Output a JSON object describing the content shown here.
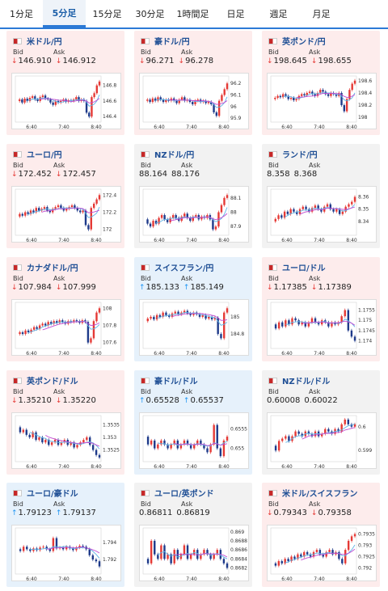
{
  "tabs": [
    "1分足",
    "5分足",
    "15分足",
    "30分足",
    "1時間足",
    "日足",
    "週足",
    "月足"
  ],
  "active_tab": 1,
  "labels": {
    "bid": "Bid",
    "ask": "Ask"
  },
  "colors": {
    "up": "#2196f3",
    "down": "#e53935",
    "title": "#1f4f95",
    "ma1": "#5fb3e6",
    "ma2": "#c04bd1"
  },
  "x_ticks": [
    "6:40",
    "7:40",
    "8:40"
  ],
  "cards": [
    {
      "title": "米ドル/円",
      "flag": "us-jp-flag",
      "dir": "down",
      "bid": "146.910",
      "ask": "146.912",
      "y_ticks": [
        "146.8",
        "146.6",
        "146.4"
      ],
      "ylim": [
        146.35,
        146.9
      ],
      "series": [
        146.6,
        146.62,
        146.58,
        146.63,
        146.6,
        146.64,
        146.66,
        146.62,
        146.6,
        146.65,
        146.67,
        146.63,
        146.62,
        146.58,
        146.55,
        146.6,
        146.58,
        146.6,
        146.62,
        146.59,
        146.61,
        146.6,
        146.62,
        146.65,
        146.6,
        146.62,
        146.6,
        146.45,
        146.4,
        146.65,
        146.7,
        146.8,
        146.85
      ]
    },
    {
      "title": "豪ドル/円",
      "flag": "au-jp-flag",
      "dir": "down",
      "bid": "96.271",
      "ask": "96.278",
      "y_ticks": [
        "96.2",
        "96.1",
        "96",
        "95.9"
      ],
      "ylim": [
        95.88,
        96.25
      ],
      "series": [
        96.05,
        96.06,
        96.04,
        96.07,
        96.05,
        96.08,
        96.06,
        96.04,
        96.06,
        96.05,
        96.07,
        96.05,
        96.03,
        96.06,
        96.08,
        96.05,
        96.06,
        96.04,
        96.02,
        96.05,
        96.06,
        96.04,
        96.05,
        96.03,
        96.04,
        96.02,
        95.95,
        95.92,
        96.05,
        96.1,
        96.15,
        96.2
      ]
    },
    {
      "title": "英ポンド/円",
      "flag": "gb-jp-flag",
      "dir": "down",
      "bid": "198.645",
      "ask": "198.655",
      "y_ticks": [
        "198.6",
        "198.4",
        "198.2",
        "198"
      ],
      "ylim": [
        197.95,
        198.65
      ],
      "series": [
        198.3,
        198.32,
        198.35,
        198.33,
        198.38,
        198.35,
        198.3,
        198.32,
        198.28,
        198.3,
        198.35,
        198.38,
        198.36,
        198.4,
        198.42,
        198.38,
        198.35,
        198.4,
        198.45,
        198.42,
        198.38,
        198.35,
        198.4,
        198.38,
        198.35,
        198.4,
        198.2,
        198.1,
        198.3,
        198.45,
        198.55,
        198.6
      ]
    },
    {
      "title": "ユーロ/円",
      "flag": "eu-jp-flag",
      "dir": "down",
      "bid": "172.452",
      "ask": "172.457",
      "y_ticks": [
        "172.4",
        "172.2",
        "172"
      ],
      "ylim": [
        171.95,
        172.45
      ],
      "series": [
        172.15,
        172.18,
        172.16,
        172.2,
        172.18,
        172.22,
        172.2,
        172.25,
        172.22,
        172.24,
        172.26,
        172.22,
        172.2,
        172.24,
        172.26,
        172.28,
        172.25,
        172.22,
        172.24,
        172.26,
        172.28,
        172.25,
        172.22,
        172.2,
        172.22,
        172.05,
        172.0,
        172.25,
        172.3,
        172.35,
        172.4
      ]
    },
    {
      "title": "NZドル/円",
      "flag": "nz-jp-flag",
      "dir": "flat",
      "bid": "88.164",
      "ask": "88.176",
      "y_ticks": [
        "88.1",
        "88",
        "87.9"
      ],
      "ylim": [
        87.85,
        88.15
      ],
      "series": [
        87.95,
        87.92,
        87.9,
        87.94,
        87.92,
        87.96,
        87.98,
        87.95,
        87.93,
        87.96,
        87.98,
        87.96,
        87.94,
        87.97,
        87.99,
        87.96,
        87.94,
        87.97,
        87.98,
        87.95,
        87.97,
        87.96,
        87.98,
        87.95,
        87.88,
        87.9,
        88.0,
        88.05,
        88.1,
        88.12
      ]
    },
    {
      "title": "ランド/円",
      "flag": "za-jp-flag",
      "dir": "flat",
      "bid": "8.358",
      "ask": "8.368",
      "y_ticks": [
        "8.36",
        "8.35",
        "8.34"
      ],
      "ylim": [
        8.33,
        8.365
      ],
      "series": [
        8.34,
        8.342,
        8.345,
        8.343,
        8.348,
        8.346,
        8.35,
        8.348,
        8.346,
        8.35,
        8.352,
        8.35,
        8.348,
        8.351,
        8.353,
        8.35,
        8.348,
        8.352,
        8.354,
        8.35,
        8.348,
        8.35,
        8.346,
        8.348,
        8.352,
        8.354,
        8.356,
        8.36
      ]
    },
    {
      "title": "カナダドル/円",
      "flag": "ca-jp-flag",
      "dir": "down",
      "bid": "107.984",
      "ask": "107.999",
      "y_ticks": [
        "108",
        "107.8",
        "107.6"
      ],
      "ylim": [
        107.55,
        108.05
      ],
      "series": [
        107.7,
        107.72,
        107.7,
        107.74,
        107.72,
        107.75,
        107.78,
        107.76,
        107.8,
        107.82,
        107.8,
        107.84,
        107.82,
        107.85,
        107.83,
        107.86,
        107.84,
        107.82,
        107.85,
        107.84,
        107.86,
        107.85,
        107.83,
        107.86,
        107.84,
        107.6,
        107.65,
        107.85,
        107.95,
        108.0
      ]
    },
    {
      "title": "スイスフラン/円",
      "flag": "ch-jp-flag",
      "dir": "up",
      "bid": "185.133",
      "ask": "185.149",
      "y_ticks": [
        "185",
        "184.8"
      ],
      "ylim": [
        184.65,
        185.15
      ],
      "series": [
        184.95,
        184.98,
        185.0,
        184.97,
        185.02,
        185.0,
        185.05,
        185.02,
        185.0,
        185.04,
        185.06,
        185.03,
        185.05,
        185.07,
        185.04,
        185.02,
        185.05,
        185.03,
        185.0,
        185.02,
        184.98,
        185.0,
        184.97,
        184.99,
        184.8,
        184.75,
        185.05,
        185.1
      ]
    },
    {
      "title": "ユーロ/ドル",
      "flag": "eu-us-flag",
      "dir": "down",
      "bid": "1.17385",
      "ask": "1.17389",
      "y_ticks": [
        "1.1755",
        "1.175",
        "1.1745",
        "1.174"
      ],
      "ylim": [
        1.1737,
        1.1758
      ],
      "series": [
        1.1748,
        1.1746,
        1.1749,
        1.1747,
        1.175,
        1.1748,
        1.1751,
        1.175,
        1.1748,
        1.1749,
        1.1747,
        1.1749,
        1.1751,
        1.1749,
        1.1748,
        1.175,
        1.1749,
        1.1747,
        1.1749,
        1.1748,
        1.1749,
        1.1752,
        1.1755,
        1.1745,
        1.1742,
        1.174
      ]
    },
    {
      "title": "英ポンド/ドル",
      "flag": "gb-us-flag",
      "dir": "down",
      "bid": "1.35210",
      "ask": "1.35220",
      "y_ticks": [
        "1.3535",
        "1.353",
        "1.3525"
      ],
      "ylim": [
        1.3521,
        1.3538
      ],
      "series": [
        1.3534,
        1.3532,
        1.3533,
        1.3531,
        1.353,
        1.3532,
        1.3529,
        1.353,
        1.3528,
        1.3529,
        1.3527,
        1.3528,
        1.3529,
        1.3527,
        1.3528,
        1.3529,
        1.3527,
        1.3528,
        1.3526,
        1.3527,
        1.3528,
        1.3529,
        1.353,
        1.3527,
        1.3525,
        1.3523,
        1.3522
      ]
    },
    {
      "title": "豪ドル/ドル",
      "flag": "au-us-flag",
      "dir": "up",
      "bid": "0.65528",
      "ask": "0.65537",
      "y_ticks": [
        "0.6555",
        "0.655"
      ],
      "ylim": [
        0.6547,
        0.6558
      ],
      "series": [
        0.6553,
        0.6551,
        0.6552,
        0.655,
        0.6551,
        0.6552,
        0.6551,
        0.655,
        0.6551,
        0.6552,
        0.655,
        0.6551,
        0.6552,
        0.6551,
        0.655,
        0.6551,
        0.6552,
        0.6551,
        0.655,
        0.6549,
        0.6551,
        0.6556,
        0.655,
        0.6548,
        0.6552,
        0.6553
      ]
    },
    {
      "title": "NZドル/ドル",
      "flag": "nz-us-flag",
      "dir": "flat",
      "bid": "0.60008",
      "ask": "0.60022",
      "y_ticks": [
        "0.6",
        "0.599"
      ],
      "ylim": [
        0.5986,
        0.6004
      ],
      "series": [
        0.5992,
        0.599,
        0.5994,
        0.5995,
        0.5996,
        0.5994,
        0.5996,
        0.5998,
        0.5997,
        0.5996,
        0.5998,
        0.5997,
        0.5996,
        0.5998,
        0.5996,
        0.5997,
        0.5999,
        0.5998,
        0.5997,
        0.5999,
        0.5998,
        0.6001,
        0.6003,
        0.6001,
        0.6,
        0.6001
      ]
    },
    {
      "title": "ユーロ/豪ドル",
      "flag": "eu-au-flag",
      "dir": "up",
      "bid": "1.79123",
      "ask": "1.79137",
      "y_ticks": [
        "1.794",
        "1.792"
      ],
      "ylim": [
        1.7905,
        1.7955
      ],
      "series": [
        1.7932,
        1.793,
        1.7935,
        1.7932,
        1.793,
        1.7933,
        1.7931,
        1.7934,
        1.7935,
        1.7932,
        1.793,
        1.7945,
        1.7933,
        1.7934,
        1.7932,
        1.7935,
        1.7933,
        1.7931,
        1.7934,
        1.7936,
        1.7935,
        1.7932,
        1.7925,
        1.792,
        1.7918,
        1.7912
      ]
    },
    {
      "title": "ユーロ/英ポンド",
      "flag": "eu-gb-flag",
      "dir": "flat",
      "bid": "0.86811",
      "ask": "0.86819",
      "y_ticks": [
        "0.869",
        "0.8688",
        "0.8686",
        "0.8684",
        "0.8682"
      ],
      "ylim": [
        0.8681,
        0.86905
      ],
      "series": [
        0.8684,
        0.8683,
        0.8688,
        0.8685,
        0.8684,
        0.8687,
        0.8684,
        0.8685,
        0.8683,
        0.8686,
        0.8684,
        0.8685,
        0.8687,
        0.8684,
        0.8685,
        0.8686,
        0.8684,
        0.8685,
        0.8686,
        0.8685,
        0.8684,
        0.8685,
        0.8686,
        0.8684,
        0.8683,
        0.8682
      ]
    },
    {
      "title": "米ドル/スイスフラン",
      "flag": "us-ch-flag",
      "dir": "down",
      "bid": "0.79343",
      "ask": "0.79358",
      "y_ticks": [
        "0.7935",
        "0.793",
        "0.7925",
        "0.792"
      ],
      "ylim": [
        0.7918,
        0.7937
      ],
      "series": [
        0.7922,
        0.7921,
        0.7923,
        0.7922,
        0.7924,
        0.7923,
        0.7925,
        0.7924,
        0.7926,
        0.7925,
        0.7927,
        0.7926,
        0.7925,
        0.7927,
        0.7928,
        0.7926,
        0.7925,
        0.7927,
        0.7928,
        0.7926,
        0.7927,
        0.7924,
        0.7922,
        0.7928,
        0.7932,
        0.7934,
        0.7935
      ]
    }
  ]
}
